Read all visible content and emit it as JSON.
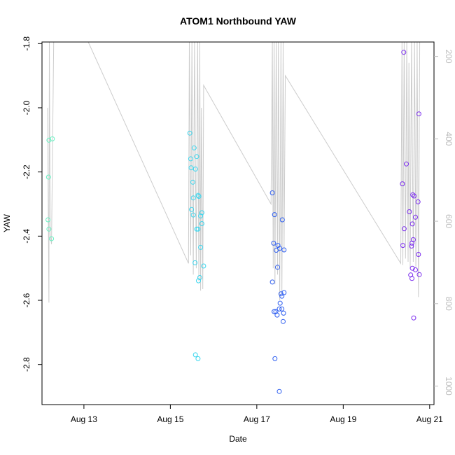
{
  "chart_data": {
    "type": "scatter",
    "title": "ATOM1 Northbound YAW",
    "xlabel": "Date",
    "ylabel": "YAW",
    "x_ticks": [
      "Aug 13",
      "Aug 15",
      "Aug 17",
      "Aug 19",
      "Aug 21"
    ],
    "x_tick_values": [
      13,
      15,
      17,
      19,
      21
    ],
    "xlim": [
      12.03,
      21.1
    ],
    "ylim": [
      -2.925,
      -1.795
    ],
    "y_ticks": [
      -2.8,
      -2.6,
      -2.4,
      -2.2,
      -2.0,
      -1.8
    ],
    "y_tick_labels": [
      "-2.8",
      "-2.6",
      "-2.4",
      "-2.2",
      "-2.0",
      "-1.8"
    ],
    "y2lim": [
      1045,
      165
    ],
    "y2_ticks": [
      200,
      400,
      600,
      800,
      1000
    ],
    "y2_tick_labels": [
      "200",
      "400",
      "600",
      "800",
      "1000"
    ],
    "series": [
      {
        "color": "#66f2c2",
        "points": [
          [
            12.19,
            -2.101
          ],
          [
            12.27,
            -2.097
          ],
          [
            12.18,
            -2.216
          ],
          [
            12.17,
            -2.349
          ],
          [
            12.19,
            -2.378
          ],
          [
            12.25,
            -2.408
          ]
        ]
      },
      {
        "color": "#3bd6ee",
        "points": [
          [
            15.45,
            -2.079
          ],
          [
            15.55,
            -2.125
          ],
          [
            15.47,
            -2.159
          ],
          [
            15.61,
            -2.152
          ],
          [
            15.48,
            -2.187
          ],
          [
            15.58,
            -2.191
          ],
          [
            15.52,
            -2.232
          ],
          [
            15.64,
            -2.273
          ],
          [
            15.66,
            -2.276
          ],
          [
            15.53,
            -2.281
          ],
          [
            15.49,
            -2.317
          ],
          [
            15.53,
            -2.334
          ],
          [
            15.73,
            -2.327
          ],
          [
            15.7,
            -2.337
          ],
          [
            15.73,
            -2.361
          ],
          [
            15.61,
            -2.378
          ],
          [
            15.64,
            -2.378
          ],
          [
            15.7,
            -2.435
          ],
          [
            15.57,
            -2.483
          ],
          [
            15.77,
            -2.493
          ],
          [
            15.68,
            -2.529
          ],
          [
            15.65,
            -2.539
          ],
          [
            15.58,
            -2.77
          ],
          [
            15.64,
            -2.782
          ]
        ]
      },
      {
        "color": "#2f5ff0",
        "points": [
          [
            17.36,
            -2.265
          ],
          [
            17.41,
            -2.333
          ],
          [
            17.59,
            -2.349
          ],
          [
            17.39,
            -2.422
          ],
          [
            17.49,
            -2.429
          ],
          [
            17.45,
            -2.444
          ],
          [
            17.53,
            -2.438
          ],
          [
            17.63,
            -2.443
          ],
          [
            17.48,
            -2.497
          ],
          [
            17.36,
            -2.543
          ],
          [
            17.56,
            -2.58
          ],
          [
            17.63,
            -2.576
          ],
          [
            17.58,
            -2.587
          ],
          [
            17.54,
            -2.609
          ],
          [
            17.4,
            -2.635
          ],
          [
            17.44,
            -2.635
          ],
          [
            17.52,
            -2.627
          ],
          [
            17.58,
            -2.627
          ],
          [
            17.62,
            -2.64
          ],
          [
            17.47,
            -2.646
          ],
          [
            17.61,
            -2.666
          ],
          [
            17.42,
            -2.782
          ],
          [
            17.52,
            -2.884
          ]
        ]
      },
      {
        "color": "#7a2bee",
        "points": [
          [
            20.4,
            -1.827
          ],
          [
            20.75,
            -2.019
          ],
          [
            20.46,
            -2.175
          ],
          [
            20.37,
            -2.237
          ],
          [
            20.61,
            -2.271
          ],
          [
            20.64,
            -2.275
          ],
          [
            20.73,
            -2.293
          ],
          [
            20.53,
            -2.324
          ],
          [
            20.67,
            -2.341
          ],
          [
            20.6,
            -2.362
          ],
          [
            20.41,
            -2.377
          ],
          [
            20.62,
            -2.411
          ],
          [
            20.59,
            -2.422
          ],
          [
            20.58,
            -2.431
          ],
          [
            20.38,
            -2.429
          ],
          [
            20.74,
            -2.457
          ],
          [
            20.6,
            -2.5
          ],
          [
            20.67,
            -2.505
          ],
          [
            20.56,
            -2.521
          ],
          [
            20.76,
            -2.52
          ],
          [
            20.59,
            -2.532
          ],
          [
            20.63,
            -2.655
          ]
        ]
      }
    ],
    "right_axis_line": {
      "color": "#cccccc",
      "points": [
        [
          12.16,
          -2.0
        ],
        [
          12.19,
          -2.607
        ],
        [
          12.2,
          -1.79
        ],
        [
          12.22,
          -2.391
        ],
        [
          12.25,
          -2.425
        ],
        [
          12.3,
          -1.79
        ],
        [
          13.1,
          -1.79
        ],
        [
          15.42,
          -2.485
        ],
        [
          15.44,
          -1.79
        ],
        [
          15.47,
          -2.46
        ],
        [
          15.5,
          -1.79
        ],
        [
          15.53,
          -2.52
        ],
        [
          15.56,
          -1.79
        ],
        [
          15.6,
          -2.5
        ],
        [
          15.63,
          -1.79
        ],
        [
          15.66,
          -2.54
        ],
        [
          15.68,
          -1.79
        ],
        [
          15.7,
          -2.57
        ],
        [
          15.72,
          -2.0
        ],
        [
          15.75,
          -2.565
        ],
        [
          15.77,
          -1.93
        ],
        [
          17.33,
          -2.3
        ],
        [
          17.36,
          -1.79
        ],
        [
          17.38,
          -2.5
        ],
        [
          17.4,
          -1.79
        ],
        [
          17.42,
          -2.55
        ],
        [
          17.45,
          -1.79
        ],
        [
          17.48,
          -2.52
        ],
        [
          17.5,
          -1.79
        ],
        [
          17.53,
          -2.6
        ],
        [
          17.56,
          -1.79
        ],
        [
          17.58,
          -2.58
        ],
        [
          17.61,
          -1.79
        ],
        [
          17.63,
          -2.45
        ],
        [
          17.66,
          -1.9
        ],
        [
          20.33,
          -2.485
        ],
        [
          20.36,
          -1.79
        ],
        [
          20.38,
          -2.49
        ],
        [
          20.41,
          -1.79
        ],
        [
          20.44,
          -2.47
        ],
        [
          20.47,
          -1.79
        ],
        [
          20.5,
          -2.48
        ],
        [
          20.52,
          -1.86
        ],
        [
          20.55,
          -2.5
        ],
        [
          20.58,
          -1.79
        ],
        [
          20.62,
          -2.48
        ],
        [
          20.65,
          -1.79
        ],
        [
          20.68,
          -2.495
        ],
        [
          20.71,
          -1.79
        ],
        [
          20.74,
          -2.59
        ],
        [
          20.77,
          -1.79
        ]
      ]
    }
  }
}
